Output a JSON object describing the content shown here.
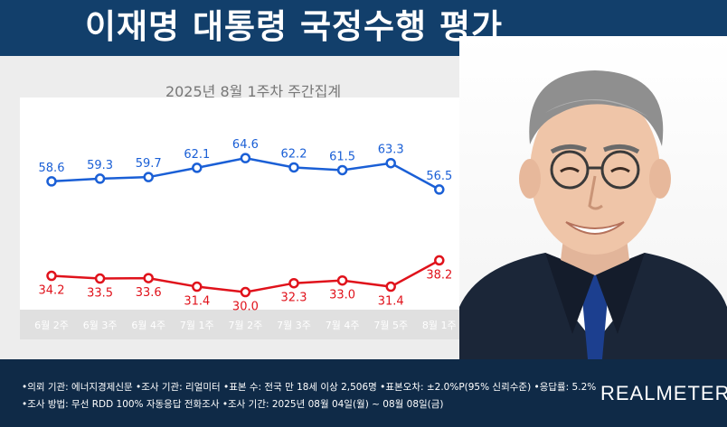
{
  "header": {
    "title": "이재명 대통령 국정수행 평가"
  },
  "chart_data": {
    "type": "line",
    "title": "2025년 8월 1주차 주간집계",
    "categories": [
      "6월 2주",
      "6월 3주",
      "6월 4주",
      "7월 1주",
      "7월 2주",
      "7월 3주",
      "7월 4주",
      "7월 5주",
      "8월 1주"
    ],
    "series": [
      {
        "values": [
          58.6,
          59.3,
          59.7,
          62.1,
          64.6,
          62.2,
          61.5,
          63.3,
          56.5
        ],
        "color": "#1a5fd6"
      },
      {
        "values": [
          34.2,
          33.5,
          33.6,
          31.4,
          30.0,
          32.3,
          33.0,
          31.4,
          38.2
        ],
        "color": "#e0121b"
      }
    ],
    "value_labels": [
      [
        "58.6",
        "59.3",
        "59.7",
        "62.1",
        "64.6",
        "62.2",
        "61.5",
        "63.3",
        "56.5"
      ],
      [
        "34.2",
        "33.5",
        "33.6",
        "31.4",
        "30.0",
        "32.3",
        "33.0",
        "31.4",
        "38.2"
      ]
    ],
    "grid": false,
    "legend": "none"
  },
  "footer": {
    "line1": "•의뢰 기관: 에너지경제신문  •조사 기관: 리얼미터  •표본 수: 전국 만 18세 이상 2,506명  •표본오차: ±2.0%P(95% 신뢰수준)  •응답률: 5.2%",
    "line2": "•조사 방법: 무선 RDD 100% 자동응답 전화조사  •조사 기간: 2025년 08월 04일(월) ~ 08월 08일(금)",
    "brand": "REALMETER"
  },
  "colors": {
    "header_bg": "#123f6b",
    "footer_bg": "#0f2a47",
    "positive": "#1a5fd6",
    "negative": "#e0121b"
  },
  "icons": {
    "portrait": "person-portrait"
  }
}
